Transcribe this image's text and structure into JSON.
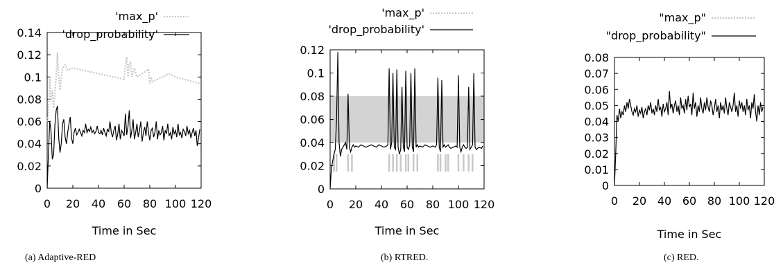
{
  "chart_data": [
    {
      "type": "line",
      "panel": "a",
      "caption": "(a) Adaptive-RED",
      "xlabel": "Time in Sec",
      "ylabel": "",
      "xlim": [
        0,
        120
      ],
      "ylim": [
        0,
        0.14
      ],
      "xticks": [
        "0",
        "20",
        "40",
        "60",
        "80",
        "100",
        "120"
      ],
      "yticks": [
        "0",
        "0.02",
        "0.04",
        "0.06",
        "0.08",
        "0.1",
        "0.12",
        "0.14"
      ],
      "legend_position": "top-right, above plot",
      "series": [
        {
          "name": "'max_p'",
          "style": "dotted",
          "color": "#c8c8c8",
          "x": [
            0,
            1,
            2,
            3,
            4,
            5,
            6,
            7,
            8,
            9,
            10,
            11,
            12,
            14,
            16,
            20,
            60,
            61,
            62,
            63,
            64,
            65,
            66,
            68,
            70,
            79,
            80,
            81,
            82,
            90,
            95,
            100,
            110,
            119
          ],
          "y": [
            0.06,
            0.066,
            0.1,
            0.08,
            0.088,
            0.072,
            0.085,
            0.1,
            0.122,
            0.1,
            0.088,
            0.1,
            0.108,
            0.111,
            0.106,
            0.108,
            0.098,
            0.11,
            0.118,
            0.1,
            0.112,
            0.114,
            0.1,
            0.108,
            0.1,
            0.107,
            0.094,
            0.1,
            0.096,
            0.1,
            0.103,
            0.1,
            0.097,
            0.094
          ]
        },
        {
          "name": "'drop_probability'",
          "style": "solid",
          "color": "#000000",
          "x": [
            0,
            1,
            2,
            3,
            4,
            5,
            6,
            7,
            8,
            9,
            10,
            11,
            12,
            13,
            14,
            15,
            16,
            17,
            18,
            19,
            20,
            21,
            22,
            23,
            24,
            25,
            26,
            27,
            28,
            29,
            30,
            31,
            32,
            33,
            34,
            35,
            36,
            37,
            38,
            39,
            40,
            41,
            42,
            43,
            44,
            45,
            46,
            47,
            48,
            49,
            50,
            51,
            52,
            53,
            54,
            55,
            56,
            57,
            58,
            59,
            60,
            61,
            62,
            63,
            64,
            65,
            66,
            67,
            68,
            69,
            70,
            71,
            72,
            73,
            74,
            75,
            76,
            77,
            78,
            79,
            80,
            81,
            82,
            83,
            84,
            85,
            86,
            87,
            88,
            89,
            90,
            91,
            92,
            93,
            94,
            95,
            96,
            97,
            98,
            99,
            100,
            101,
            102,
            103,
            104,
            105,
            106,
            107,
            108,
            109,
            110,
            111,
            112,
            113,
            114,
            115,
            116,
            117,
            118,
            119
          ],
          "y": [
            0,
            0.03,
            0.06,
            0.052,
            0.026,
            0.03,
            0.056,
            0.07,
            0.074,
            0.045,
            0.032,
            0.04,
            0.058,
            0.062,
            0.046,
            0.04,
            0.05,
            0.058,
            0.064,
            0.045,
            0.04,
            0.05,
            0.054,
            0.048,
            0.05,
            0.053,
            0.05,
            0.047,
            0.052,
            0.05,
            0.058,
            0.05,
            0.053,
            0.051,
            0.055,
            0.05,
            0.052,
            0.049,
            0.051,
            0.056,
            0.05,
            0.049,
            0.052,
            0.048,
            0.054,
            0.05,
            0.047,
            0.053,
            0.051,
            0.06,
            0.05,
            0.046,
            0.052,
            0.056,
            0.043,
            0.049,
            0.058,
            0.044,
            0.052,
            0.05,
            0.047,
            0.067,
            0.048,
            0.056,
            0.07,
            0.045,
            0.052,
            0.062,
            0.044,
            0.05,
            0.058,
            0.046,
            0.052,
            0.06,
            0.042,
            0.05,
            0.055,
            0.047,
            0.06,
            0.05,
            0.043,
            0.052,
            0.054,
            0.046,
            0.05,
            0.06,
            0.044,
            0.052,
            0.048,
            0.05,
            0.056,
            0.043,
            0.052,
            0.049,
            0.058,
            0.047,
            0.05,
            0.044,
            0.055,
            0.049,
            0.052,
            0.046,
            0.058,
            0.048,
            0.05,
            0.045,
            0.053,
            0.051,
            0.047,
            0.056,
            0.049,
            0.052,
            0.045,
            0.05,
            0.054,
            0.047,
            0.052,
            0.038,
            0.045,
            0.053
          ]
        }
      ]
    },
    {
      "type": "line",
      "panel": "b",
      "caption": "(b) RTRED.",
      "xlabel": "Time in Sec",
      "ylabel": "",
      "xlim": [
        0,
        120
      ],
      "ylim": [
        0,
        0.12
      ],
      "xticks": [
        "0",
        "20",
        "40",
        "60",
        "80",
        "100",
        "120"
      ],
      "yticks": [
        "0",
        "0.02",
        "0.04",
        "0.06",
        "0.08",
        "0.1",
        "0.12"
      ],
      "legend_position": "top-right, above plot",
      "band": {
        "y0": 0.04,
        "y1": 0.08,
        "color": "#d3d3d3"
      },
      "max_p_segments_x": [
        3,
        5,
        14,
        17,
        46,
        49,
        52,
        55,
        59,
        61,
        65,
        68,
        84,
        86,
        90,
        92,
        100,
        104,
        108,
        111
      ],
      "max_p_segments_y": [
        0.015,
        0.03
      ],
      "series": [
        {
          "name": "'max_p'",
          "style": "dotted",
          "color": "#c8c8c8",
          "x": [],
          "y": []
        },
        {
          "name": "'drop_probability'",
          "style": "solid",
          "color": "#000000",
          "x": [
            0,
            1,
            2,
            3,
            4,
            5,
            6,
            7,
            8,
            9,
            10,
            11,
            12,
            13,
            14,
            15,
            16,
            17,
            18,
            19,
            20,
            22,
            24,
            26,
            28,
            30,
            32,
            34,
            36,
            38,
            40,
            42,
            44,
            45,
            46,
            47,
            48,
            49,
            50,
            51,
            52,
            53,
            54,
            55,
            56,
            57,
            58,
            59,
            60,
            61,
            62,
            63,
            64,
            65,
            66,
            67,
            68,
            69,
            70,
            72,
            74,
            76,
            78,
            80,
            82,
            83,
            84,
            85,
            86,
            87,
            88,
            89,
            90,
            91,
            92,
            93,
            94,
            96,
            98,
            99,
            100,
            101,
            102,
            103,
            104,
            105,
            106,
            107,
            108,
            109,
            110,
            111,
            112,
            113,
            114,
            116,
            118,
            119
          ],
          "y": [
            0,
            0.018,
            0.024,
            0.03,
            0.034,
            0.06,
            0.118,
            0.04,
            0.028,
            0.034,
            0.036,
            0.038,
            0.04,
            0.034,
            0.082,
            0.036,
            0.032,
            0.036,
            0.038,
            0.036,
            0.037,
            0.036,
            0.038,
            0.037,
            0.036,
            0.037,
            0.038,
            0.037,
            0.036,
            0.038,
            0.037,
            0.036,
            0.037,
            0.038,
            0.104,
            0.034,
            0.04,
            0.1,
            0.036,
            0.034,
            0.103,
            0.036,
            0.03,
            0.034,
            0.088,
            0.036,
            0.032,
            0.102,
            0.036,
            0.034,
            0.038,
            0.1,
            0.036,
            0.032,
            0.104,
            0.036,
            0.038,
            0.036,
            0.037,
            0.036,
            0.038,
            0.037,
            0.036,
            0.037,
            0.036,
            0.038,
            0.096,
            0.036,
            0.032,
            0.094,
            0.036,
            0.038,
            0.036,
            0.037,
            0.038,
            0.036,
            0.035,
            0.036,
            0.037,
            0.036,
            0.098,
            0.036,
            0.032,
            0.036,
            0.038,
            0.036,
            0.035,
            0.036,
            0.088,
            0.034,
            0.036,
            0.038,
            0.1,
            0.036,
            0.034,
            0.036,
            0.035,
            0.037
          ]
        }
      ]
    },
    {
      "type": "line",
      "panel": "c",
      "caption": "(c) RED.",
      "xlabel": "Time in Sec",
      "ylabel": "",
      "xlim": [
        0,
        120
      ],
      "ylim": [
        0,
        0.08
      ],
      "xticks": [
        "0",
        "20",
        "40",
        "60",
        "80",
        "100",
        "120"
      ],
      "yticks": [
        "0",
        "0.01",
        "0.02",
        "0.03",
        "0.04",
        "0.05",
        "0.06",
        "0.07",
        "0.08"
      ],
      "legend_position": "top-right, above plot",
      "series": [
        {
          "name": "\"max_p\"",
          "style": "dotted",
          "color": "#c8c8c8",
          "x": [],
          "y": []
        },
        {
          "name": "\"drop_probability\"",
          "style": "solid",
          "color": "#000000",
          "x": [
            0,
            1,
            2,
            3,
            4,
            5,
            6,
            7,
            8,
            9,
            10,
            11,
            12,
            13,
            14,
            15,
            16,
            17,
            18,
            19,
            20,
            21,
            22,
            23,
            24,
            25,
            26,
            27,
            28,
            29,
            30,
            31,
            32,
            33,
            34,
            35,
            36,
            37,
            38,
            39,
            40,
            41,
            42,
            43,
            44,
            45,
            46,
            47,
            48,
            49,
            50,
            51,
            52,
            53,
            54,
            55,
            56,
            57,
            58,
            59,
            60,
            61,
            62,
            63,
            64,
            65,
            66,
            67,
            68,
            69,
            70,
            71,
            72,
            73,
            74,
            75,
            76,
            77,
            78,
            79,
            80,
            81,
            82,
            83,
            84,
            85,
            86,
            87,
            88,
            89,
            90,
            91,
            92,
            93,
            94,
            95,
            96,
            97,
            98,
            99,
            100,
            101,
            102,
            103,
            104,
            105,
            106,
            107,
            108,
            109,
            110,
            111,
            112,
            113,
            114,
            115,
            116,
            117,
            118,
            119
          ],
          "y": [
            0,
            0.02,
            0.044,
            0.04,
            0.048,
            0.042,
            0.046,
            0.044,
            0.05,
            0.046,
            0.052,
            0.048,
            0.054,
            0.05,
            0.046,
            0.044,
            0.048,
            0.046,
            0.05,
            0.043,
            0.047,
            0.045,
            0.049,
            0.042,
            0.046,
            0.048,
            0.044,
            0.05,
            0.047,
            0.052,
            0.045,
            0.048,
            0.044,
            0.05,
            0.046,
            0.054,
            0.047,
            0.049,
            0.043,
            0.051,
            0.046,
            0.048,
            0.052,
            0.044,
            0.059,
            0.048,
            0.051,
            0.045,
            0.05,
            0.053,
            0.046,
            0.05,
            0.044,
            0.055,
            0.048,
            0.05,
            0.045,
            0.054,
            0.047,
            0.056,
            0.049,
            0.051,
            0.044,
            0.058,
            0.048,
            0.052,
            0.043,
            0.05,
            0.046,
            0.055,
            0.048,
            0.045,
            0.052,
            0.047,
            0.055,
            0.049,
            0.046,
            0.053,
            0.05,
            0.044,
            0.048,
            0.054,
            0.046,
            0.05,
            0.042,
            0.052,
            0.047,
            0.05,
            0.045,
            0.055,
            0.048,
            0.044,
            0.052,
            0.049,
            0.046,
            0.05,
            0.058,
            0.046,
            0.05,
            0.043,
            0.053,
            0.048,
            0.052,
            0.046,
            0.05,
            0.044,
            0.054,
            0.047,
            0.05,
            0.042,
            0.052,
            0.048,
            0.057,
            0.046,
            0.04,
            0.05,
            0.044,
            0.052,
            0.046,
            0.049
          ]
        }
      ]
    }
  ]
}
